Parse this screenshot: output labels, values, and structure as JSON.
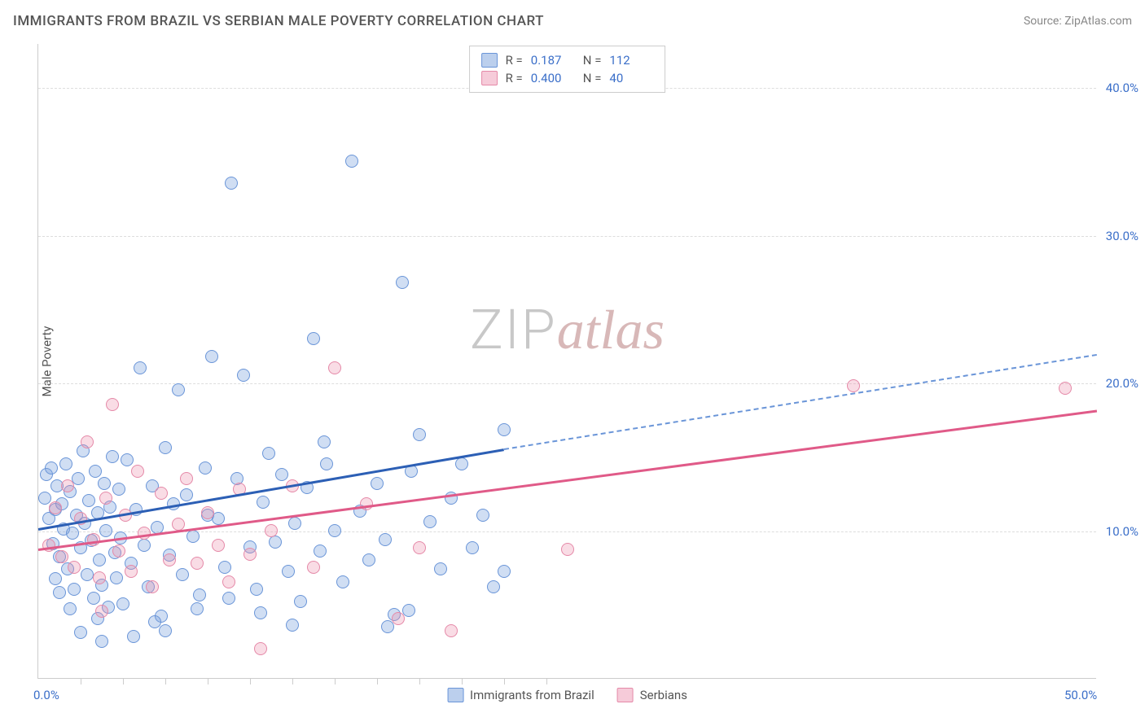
{
  "header": {
    "title": "IMMIGRANTS FROM BRAZIL VS SERBIAN MALE POVERTY CORRELATION CHART",
    "source_prefix": "Source: ",
    "source_name": "ZipAtlas.com"
  },
  "watermark": {
    "part1": "ZIP",
    "part2": "atlas"
  },
  "chart": {
    "type": "scatter",
    "y_axis_label": "Male Poverty",
    "xlim": [
      0,
      50
    ],
    "ylim": [
      0,
      43
    ],
    "x_ticks": [
      0,
      50
    ],
    "x_tick_labels": [
      "0.0%",
      "50.0%"
    ],
    "y_ticks": [
      10,
      20,
      30,
      40
    ],
    "y_tick_labels": [
      "10.0%",
      "20.0%",
      "30.0%",
      "40.0%"
    ],
    "x_minor_ticks": [
      2,
      4,
      6,
      8,
      10,
      12,
      14,
      16,
      18,
      20,
      22,
      24
    ],
    "grid_color": "#dddddd",
    "background_color": "#ffffff",
    "point_radius": 8,
    "series": [
      {
        "name": "Immigrants from Brazil",
        "color_fill": "rgba(120,160,220,0.35)",
        "color_stroke": "#6a95d8",
        "trend_color": "#2c5fb5",
        "R": "0.187",
        "N": "112",
        "trend": {
          "x1": 0,
          "y1": 10.2,
          "x2_solid": 22,
          "y2_solid": 15.6,
          "x2_dash": 50,
          "y2_dash": 22.0
        },
        "points": [
          [
            0.3,
            12.2
          ],
          [
            0.4,
            13.8
          ],
          [
            0.5,
            10.8
          ],
          [
            0.6,
            14.2
          ],
          [
            0.7,
            9.1
          ],
          [
            0.8,
            11.4
          ],
          [
            0.9,
            13.0
          ],
          [
            1.0,
            8.2
          ],
          [
            1.1,
            11.8
          ],
          [
            1.2,
            10.1
          ],
          [
            1.3,
            14.5
          ],
          [
            1.4,
            7.4
          ],
          [
            1.5,
            12.6
          ],
          [
            1.6,
            9.8
          ],
          [
            1.7,
            6.0
          ],
          [
            1.8,
            11.0
          ],
          [
            1.9,
            13.5
          ],
          [
            2.0,
            8.8
          ],
          [
            2.1,
            15.4
          ],
          [
            2.2,
            10.5
          ],
          [
            2.3,
            7.0
          ],
          [
            2.4,
            12.0
          ],
          [
            2.5,
            9.3
          ],
          [
            2.6,
            5.4
          ],
          [
            2.7,
            14.0
          ],
          [
            2.8,
            11.2
          ],
          [
            2.9,
            8.0
          ],
          [
            3.0,
            6.3
          ],
          [
            3.1,
            13.2
          ],
          [
            3.2,
            10.0
          ],
          [
            3.3,
            4.8
          ],
          [
            3.4,
            11.6
          ],
          [
            3.5,
            15.0
          ],
          [
            3.6,
            8.5
          ],
          [
            3.7,
            6.8
          ],
          [
            3.8,
            12.8
          ],
          [
            3.9,
            9.5
          ],
          [
            4.0,
            5.0
          ],
          [
            4.2,
            14.8
          ],
          [
            4.4,
            7.8
          ],
          [
            4.6,
            11.4
          ],
          [
            4.8,
            21.0
          ],
          [
            5.0,
            9.0
          ],
          [
            5.2,
            6.2
          ],
          [
            5.4,
            13.0
          ],
          [
            5.6,
            10.2
          ],
          [
            5.8,
            4.2
          ],
          [
            6.0,
            15.6
          ],
          [
            6.2,
            8.3
          ],
          [
            6.4,
            11.8
          ],
          [
            6.6,
            19.5
          ],
          [
            6.8,
            7.0
          ],
          [
            7.0,
            12.4
          ],
          [
            7.3,
            9.6
          ],
          [
            7.6,
            5.6
          ],
          [
            7.9,
            14.2
          ],
          [
            8.2,
            21.8
          ],
          [
            8.5,
            10.8
          ],
          [
            8.8,
            7.5
          ],
          [
            9.1,
            33.5
          ],
          [
            9.4,
            13.5
          ],
          [
            9.7,
            20.5
          ],
          [
            10.0,
            8.9
          ],
          [
            10.3,
            6.0
          ],
          [
            10.6,
            11.9
          ],
          [
            10.9,
            15.2
          ],
          [
            11.2,
            9.2
          ],
          [
            11.5,
            13.8
          ],
          [
            11.8,
            7.2
          ],
          [
            12.1,
            10.5
          ],
          [
            12.4,
            5.2
          ],
          [
            12.7,
            12.9
          ],
          [
            13.0,
            23.0
          ],
          [
            13.3,
            8.6
          ],
          [
            13.6,
            14.5
          ],
          [
            14.0,
            10.0
          ],
          [
            14.4,
            6.5
          ],
          [
            14.8,
            35.0
          ],
          [
            15.2,
            11.3
          ],
          [
            15.6,
            8.0
          ],
          [
            16.0,
            13.2
          ],
          [
            16.4,
            9.4
          ],
          [
            16.8,
            4.3
          ],
          [
            17.2,
            26.8
          ],
          [
            17.6,
            14.0
          ],
          [
            18.0,
            16.5
          ],
          [
            18.5,
            10.6
          ],
          [
            19.0,
            7.4
          ],
          [
            19.5,
            12.2
          ],
          [
            20.0,
            14.5
          ],
          [
            20.5,
            8.8
          ],
          [
            21.0,
            11.0
          ],
          [
            21.5,
            6.2
          ],
          [
            22.0,
            7.2
          ],
          [
            3.0,
            2.5
          ],
          [
            4.5,
            2.8
          ],
          [
            6.0,
            3.2
          ],
          [
            2.0,
            3.1
          ],
          [
            5.5,
            3.8
          ],
          [
            7.5,
            4.7
          ],
          [
            9.0,
            5.4
          ],
          [
            10.5,
            4.4
          ],
          [
            12.0,
            3.6
          ],
          [
            1.0,
            5.8
          ],
          [
            1.5,
            4.7
          ],
          [
            0.8,
            6.7
          ],
          [
            2.8,
            4.0
          ],
          [
            8.0,
            11.0
          ],
          [
            16.5,
            3.5
          ],
          [
            17.5,
            4.6
          ],
          [
            22.0,
            16.8
          ],
          [
            13.5,
            16.0
          ]
        ]
      },
      {
        "name": "Serbians",
        "color_fill": "rgba(235,140,170,0.3)",
        "color_stroke": "#e589a8",
        "trend_color": "#e05a88",
        "R": "0.400",
        "N": "40",
        "trend": {
          "x1": 0,
          "y1": 8.8,
          "x2_solid": 50,
          "y2_solid": 18.2,
          "x2_dash": 50,
          "y2_dash": 18.2
        },
        "points": [
          [
            0.5,
            9.0
          ],
          [
            0.8,
            11.5
          ],
          [
            1.1,
            8.2
          ],
          [
            1.4,
            13.0
          ],
          [
            1.7,
            7.5
          ],
          [
            2.0,
            10.8
          ],
          [
            2.3,
            16.0
          ],
          [
            2.6,
            9.4
          ],
          [
            2.9,
            6.8
          ],
          [
            3.2,
            12.2
          ],
          [
            3.5,
            18.5
          ],
          [
            3.8,
            8.6
          ],
          [
            4.1,
            11.0
          ],
          [
            4.4,
            7.2
          ],
          [
            4.7,
            14.0
          ],
          [
            5.0,
            9.8
          ],
          [
            5.4,
            6.2
          ],
          [
            5.8,
            12.5
          ],
          [
            6.2,
            8.0
          ],
          [
            6.6,
            10.4
          ],
          [
            7.0,
            13.5
          ],
          [
            7.5,
            7.8
          ],
          [
            8.0,
            11.2
          ],
          [
            8.5,
            9.0
          ],
          [
            9.0,
            6.5
          ],
          [
            9.5,
            12.8
          ],
          [
            10.0,
            8.4
          ],
          [
            10.5,
            2.0
          ],
          [
            11.0,
            10.0
          ],
          [
            12.0,
            13.0
          ],
          [
            13.0,
            7.5
          ],
          [
            14.0,
            21.0
          ],
          [
            15.5,
            11.8
          ],
          [
            17.0,
            4.0
          ],
          [
            18.0,
            8.8
          ],
          [
            19.5,
            3.2
          ],
          [
            25.0,
            8.7
          ],
          [
            38.5,
            19.8
          ],
          [
            48.5,
            19.6
          ],
          [
            3.0,
            4.5
          ]
        ]
      }
    ],
    "legend_bottom": [
      {
        "label": "Immigrants from Brazil",
        "series": 0
      },
      {
        "label": "Serbians",
        "series": 1
      }
    ]
  }
}
